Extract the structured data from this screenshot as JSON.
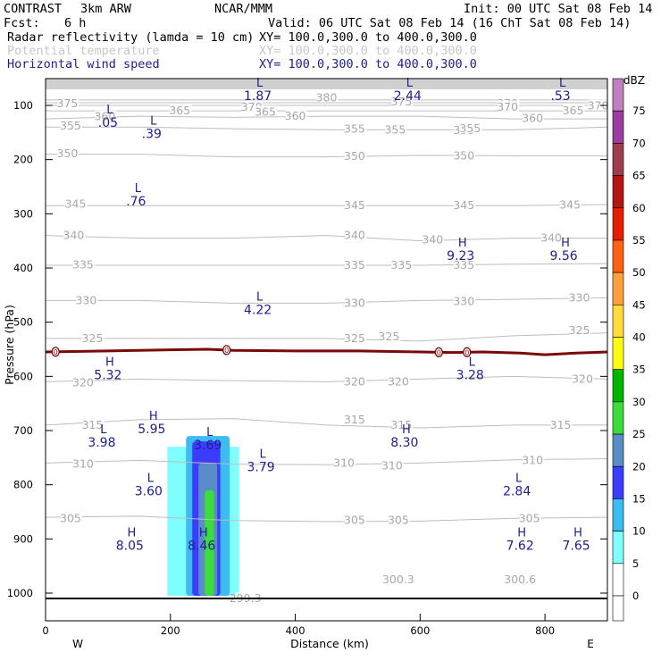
{
  "header": {
    "project": "CONTRAST",
    "model": "3km ARW",
    "org": "NCAR/MMM",
    "init": "Init: 00 UTC Sat 08 Feb 14",
    "fcst_label": "Fcst:",
    "fcst_value": "6 h",
    "valid": "Valid: 06 UTC Sat 08 Feb 14 (16 ChT Sat 08 Feb 14)",
    "fields": [
      {
        "name": "Radar reflectivity (lamda = 10 cm)",
        "xy": "XY= 100.0,300.0 to 400.0,300.0"
      },
      {
        "name": "Potential temperature",
        "xy": "XY= 100.0,300.0 to 400.0,300.0"
      },
      {
        "name": "Horizontal wind speed",
        "xy": "XY= 100.0,300.0 to 400.0,300.0"
      }
    ]
  },
  "chart_data": {
    "type": "cross-section",
    "xlabel": "Distance (km)",
    "ylabel": "Pressure (hPa)",
    "xlim": [
      0,
      900
    ],
    "ylim_hpa": [
      1050,
      50
    ],
    "x_ticks": [
      0,
      200,
      400,
      600,
      800
    ],
    "y_ticks": [
      100,
      200,
      300,
      400,
      500,
      600,
      700,
      800,
      900,
      1000
    ],
    "x_end_labels": {
      "left": "W",
      "right": "E"
    },
    "colorbar": {
      "title": "dBZ",
      "levels": [
        0,
        5,
        10,
        15,
        20,
        25,
        30,
        35,
        40,
        45,
        50,
        55,
        60,
        65,
        70,
        75
      ],
      "colors": [
        "#ffffff",
        "#80ffff",
        "#3cbcf0",
        "#3c3cff",
        "#5a8cc8",
        "#3cdc3c",
        "#00b400",
        "#fffa14",
        "#ffdc3c",
        "#ffa040",
        "#ff6014",
        "#e61e00",
        "#b41414",
        "#a03c50",
        "#9a3ca0",
        "#c080c0"
      ]
    },
    "theta_isentropes": [
      {
        "theta": 300.3,
        "label_x": 560,
        "label_p": 975
      },
      {
        "theta": 305,
        "x": [
          0,
          150,
          300,
          450,
          600,
          750,
          900
        ],
        "p": [
          860,
          858,
          866,
          868,
          867,
          862,
          860
        ]
      },
      {
        "theta": 310,
        "x": [
          0,
          150,
          300,
          450,
          600,
          750,
          900
        ],
        "p": [
          760,
          755,
          762,
          763,
          760,
          754,
          752
        ]
      },
      {
        "theta": 315,
        "x": [
          0,
          150,
          300,
          450,
          600,
          750,
          900
        ],
        "p": [
          690,
          680,
          678,
          690,
          695,
          690,
          690
        ]
      },
      {
        "theta": 320,
        "x": [
          0,
          150,
          300,
          450,
          600,
          750,
          900
        ],
        "p": [
          610,
          605,
          608,
          610,
          605,
          600,
          605
        ]
      },
      {
        "theta": 325,
        "x": [
          0,
          150,
          300,
          450,
          600,
          750,
          900
        ],
        "p": [
          530,
          530,
          530,
          530,
          535,
          525,
          520
        ]
      },
      {
        "theta": 330,
        "x": [
          0,
          150,
          300,
          450,
          600,
          750,
          900
        ],
        "p": [
          460,
          460,
          465,
          465,
          460,
          458,
          455
        ]
      },
      {
        "theta": 335,
        "x": [
          0,
          150,
          300,
          450,
          600,
          750,
          900
        ],
        "p": [
          395,
          395,
          395,
          395,
          395,
          393,
          392
        ]
      },
      {
        "theta": 340,
        "x": [
          0,
          150,
          300,
          450,
          600,
          750,
          900
        ],
        "p": [
          340,
          345,
          345,
          340,
          350,
          345,
          345
        ]
      },
      {
        "theta": 345,
        "x": [
          0,
          150,
          300,
          450,
          600,
          750,
          900
        ],
        "p": [
          285,
          285,
          285,
          285,
          285,
          285,
          283
        ]
      },
      {
        "theta": 350,
        "x": [
          0,
          150,
          300,
          450,
          600,
          750,
          900
        ],
        "p": [
          190,
          190,
          195,
          195,
          192,
          193,
          193
        ]
      },
      {
        "theta": 355,
        "x": [
          0,
          150,
          300,
          450,
          600,
          750,
          900
        ],
        "p": [
          140,
          140,
          143,
          145,
          145,
          145,
          140
        ]
      },
      {
        "theta": 360,
        "x": [
          0,
          150,
          300,
          450,
          600,
          750,
          900
        ],
        "p": [
          125,
          120,
          122,
          120,
          120,
          125,
          125
        ]
      },
      {
        "theta": 365,
        "x": [
          0,
          150,
          300,
          450,
          600,
          750,
          900
        ],
        "p": [
          110,
          110,
          110,
          110,
          110,
          110,
          110
        ]
      },
      {
        "theta": 370,
        "x": [
          0,
          150,
          300,
          450,
          600,
          750,
          900
        ],
        "p": [
          100,
          100,
          100,
          100,
          100,
          100,
          100
        ]
      },
      {
        "theta": 375,
        "x": [
          0,
          150,
          300,
          450,
          600,
          750,
          900
        ],
        "p": [
          95,
          95,
          95,
          95,
          95,
          95,
          95
        ]
      },
      {
        "theta": 380,
        "x": [
          0,
          150,
          300,
          450,
          600,
          750,
          900
        ],
        "p": [
          90,
          90,
          90,
          90,
          90,
          90,
          90
        ]
      }
    ],
    "theta_labels": [
      {
        "text": "375",
        "x": 35,
        "p": 97
      },
      {
        "text": "380",
        "x": 450,
        "p": 86
      },
      {
        "text": "375",
        "x": 570,
        "p": 93
      },
      {
        "text": "370",
        "x": 740,
        "p": 97
      },
      {
        "text": "365",
        "x": 215,
        "p": 110
      },
      {
        "text": "370",
        "x": 330,
        "p": 103
      },
      {
        "text": "365",
        "x": 352,
        "p": 112
      },
      {
        "text": "370",
        "x": 740,
        "p": 103
      },
      {
        "text": "360",
        "x": 400,
        "p": 120
      },
      {
        "text": "360",
        "x": 780,
        "p": 124
      },
      {
        "text": "365",
        "x": 845,
        "p": 110
      },
      {
        "text": "370",
        "x": 885,
        "p": 101
      },
      {
        "text": "360",
        "x": 95,
        "p": 121
      },
      {
        "text": "355",
        "x": 40,
        "p": 138
      },
      {
        "text": "355",
        "x": 495,
        "p": 144
      },
      {
        "text": "355",
        "x": 560,
        "p": 145
      },
      {
        "text": "355",
        "x": 670,
        "p": 146
      },
      {
        "text": "355",
        "x": 680,
        "p": 143
      },
      {
        "text": "350",
        "x": 35,
        "p": 189
      },
      {
        "text": "350",
        "x": 495,
        "p": 194
      },
      {
        "text": "350",
        "x": 670,
        "p": 193
      },
      {
        "text": "345",
        "x": 48,
        "p": 282
      },
      {
        "text": "345",
        "x": 495,
        "p": 285
      },
      {
        "text": "345",
        "x": 670,
        "p": 285
      },
      {
        "text": "345",
        "x": 840,
        "p": 284
      },
      {
        "text": "340",
        "x": 45,
        "p": 340
      },
      {
        "text": "340",
        "x": 495,
        "p": 340
      },
      {
        "text": "340",
        "x": 620,
        "p": 348
      },
      {
        "text": "340",
        "x": 810,
        "p": 345
      },
      {
        "text": "335",
        "x": 60,
        "p": 394
      },
      {
        "text": "335",
        "x": 495,
        "p": 395
      },
      {
        "text": "335",
        "x": 570,
        "p": 395
      },
      {
        "text": "335",
        "x": 670,
        "p": 395
      },
      {
        "text": "330",
        "x": 65,
        "p": 460
      },
      {
        "text": "330",
        "x": 495,
        "p": 465
      },
      {
        "text": "330",
        "x": 670,
        "p": 462
      },
      {
        "text": "330",
        "x": 855,
        "p": 455
      },
      {
        "text": "325",
        "x": 75,
        "p": 530
      },
      {
        "text": "325",
        "x": 495,
        "p": 530
      },
      {
        "text": "325",
        "x": 550,
        "p": 527
      },
      {
        "text": "325",
        "x": 855,
        "p": 515
      },
      {
        "text": "320",
        "x": 60,
        "p": 612
      },
      {
        "text": "320",
        "x": 495,
        "p": 610
      },
      {
        "text": "320",
        "x": 565,
        "p": 610
      },
      {
        "text": "320",
        "x": 860,
        "p": 605
      },
      {
        "text": "315",
        "x": 75,
        "p": 690
      },
      {
        "text": "315",
        "x": 495,
        "p": 680
      },
      {
        "text": "315",
        "x": 570,
        "p": 690
      },
      {
        "text": "315",
        "x": 825,
        "p": 690
      },
      {
        "text": "310",
        "x": 60,
        "p": 762
      },
      {
        "text": "310",
        "x": 478,
        "p": 760
      },
      {
        "text": "310",
        "x": 555,
        "p": 765
      },
      {
        "text": "310",
        "x": 780,
        "p": 755
      },
      {
        "text": "305",
        "x": 40,
        "p": 862
      },
      {
        "text": "305",
        "x": 495,
        "p": 866
      },
      {
        "text": "305",
        "x": 565,
        "p": 866
      },
      {
        "text": "305",
        "x": 775,
        "p": 862
      },
      {
        "text": "300.3",
        "x": 565,
        "p": 975
      },
      {
        "text": "300.6",
        "x": 760,
        "p": 975
      },
      {
        "text": "299.3",
        "x": 320,
        "p": 1010
      }
    ],
    "zero_line": {
      "label": "0",
      "x": [
        0,
        100,
        200,
        260,
        300,
        400,
        500,
        600,
        650,
        700,
        760,
        800,
        850,
        900
      ],
      "p": [
        555,
        553,
        551,
        550,
        552,
        553,
        553,
        555,
        556,
        555,
        557,
        560,
        557,
        555
      ]
    },
    "zero_label_positions": [
      16,
      290,
      630,
      675
    ],
    "wind_extrema": [
      {
        "type": "L",
        "value": "1.87",
        "x": 340,
        "p": 75
      },
      {
        "type": "L",
        "value": "2.44",
        "x": 580,
        "p": 75
      },
      {
        "type": "L",
        "value": ".53",
        "x": 825,
        "p": 75
      },
      {
        "type": "L",
        "value": ".05",
        "x": 100,
        "p": 125
      },
      {
        "type": "L",
        "value": ".39",
        "x": 170,
        "p": 145
      },
      {
        "type": "L",
        "value": ".76",
        "x": 145,
        "p": 270
      },
      {
        "type": "H",
        "value": "9.23",
        "x": 665,
        "p": 370
      },
      {
        "type": "H",
        "value": "9.56",
        "x": 830,
        "p": 370
      },
      {
        "type": "L",
        "value": "4.22",
        "x": 340,
        "p": 470
      },
      {
        "type": "H",
        "value": "5.32",
        "x": 100,
        "p": 590
      },
      {
        "type": "L",
        "value": "3.28",
        "x": 680,
        "p": 590
      },
      {
        "type": "H",
        "value": "5.95",
        "x": 170,
        "p": 690
      },
      {
        "type": "L",
        "value": "3.98",
        "x": 90,
        "p": 715
      },
      {
        "type": "L",
        "value": "3.69",
        "x": 260,
        "p": 720
      },
      {
        "type": "L",
        "value": "3.79",
        "x": 345,
        "p": 760
      },
      {
        "type": "H",
        "value": "8.30",
        "x": 575,
        "p": 715
      },
      {
        "type": "L",
        "value": "3.60",
        "x": 165,
        "p": 805
      },
      {
        "type": "L",
        "value": "2.84",
        "x": 755,
        "p": 805
      },
      {
        "type": "H",
        "value": "8.05",
        "x": 135,
        "p": 905
      },
      {
        "type": "H",
        "value": "8.46",
        "x": 250,
        "p": 905
      },
      {
        "type": "H",
        "value": "7.62",
        "x": 760,
        "p": 905
      },
      {
        "type": "H",
        "value": "7.65",
        "x": 850,
        "p": 905
      }
    ],
    "reflectivity_cells": [
      {
        "dbz": 5,
        "x": [
          195,
          310
        ],
        "p": [
          730,
          1005
        ]
      },
      {
        "dbz": 10,
        "x": [
          225,
          295
        ],
        "p": [
          710,
          1005
        ]
      },
      {
        "dbz": 15,
        "x": [
          235,
          280
        ],
        "p": [
          720,
          1005
        ]
      },
      {
        "dbz": 20,
        "x": [
          245,
          275
        ],
        "p": [
          760,
          1005
        ]
      },
      {
        "dbz": 25,
        "x": [
          255,
          270
        ],
        "p": [
          810,
          1005
        ]
      }
    ],
    "surface_p": 1005
  }
}
